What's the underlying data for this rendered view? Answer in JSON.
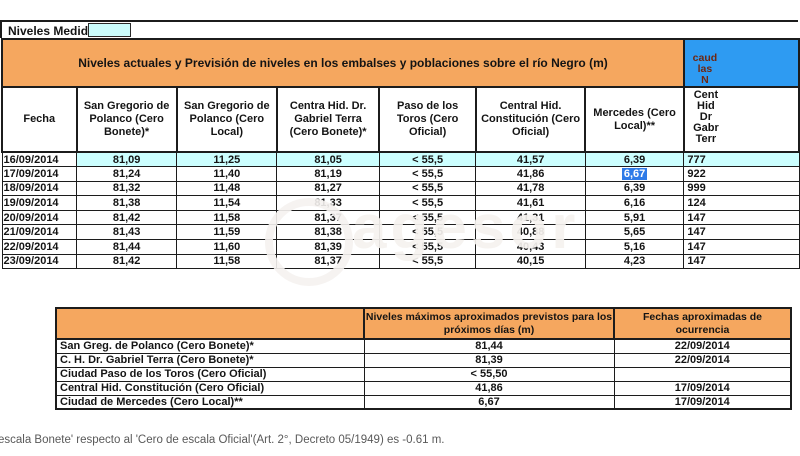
{
  "window": {
    "measured_levels_label": "Niveles Medidos"
  },
  "main_table": {
    "title": "Niveles actuales y Previsión de niveles en los embalses y poblaciones sobre el río Negro (m)",
    "blue_corner_fragments": [
      "",
      "caud",
      "las",
      "N"
    ],
    "columns": [
      "Fecha",
      "San Gregorio de Polanco (Cero Bonete)*",
      "San Gregorio de Polanco (Cero Local)",
      "Centra Hid. Dr. Gabriel Terra (Cero Bonete)*",
      "Paso de los Toros (Cero Oficial)",
      "Central Hid. Constitución (Cero Oficial)",
      "Mercedes (Cero Local)**"
    ],
    "cut_column_fragments": [
      "Cent",
      "Hid",
      "Dr",
      "Gabr",
      "Terr"
    ],
    "rows": [
      {
        "fecha": "16/09/2014",
        "values": [
          "81,09",
          "11,25",
          "81,05",
          "< 55,5",
          "41,57",
          "6,39",
          "777"
        ],
        "highlight": true
      },
      {
        "fecha": "17/09/2014",
        "values": [
          "81,24",
          "11,40",
          "81,19",
          "< 55,5",
          "41,86",
          "6,67",
          "922"
        ],
        "highlight": false
      },
      {
        "fecha": "18/09/2014",
        "values": [
          "81,32",
          "11,48",
          "81,27",
          "< 55,5",
          "41,78",
          "6,39",
          "999"
        ],
        "highlight": false
      },
      {
        "fecha": "19/09/2014",
        "values": [
          "81,38",
          "11,54",
          "81,33",
          "< 55,5",
          "41,61",
          "6,16",
          "124"
        ],
        "highlight": false
      },
      {
        "fecha": "20/09/2014",
        "values": [
          "81,42",
          "11,58",
          "81,37",
          "< 55,5",
          "41,31",
          "5,91",
          "147"
        ],
        "highlight": false
      },
      {
        "fecha": "21/09/2014",
        "values": [
          "81,43",
          "11,59",
          "81,38",
          "< 55,5",
          "40,88",
          "5,65",
          "147"
        ],
        "highlight": false
      },
      {
        "fecha": "22/09/2014",
        "values": [
          "81,44",
          "11,60",
          "81,39",
          "< 55,5",
          "40,43",
          "5,16",
          "147"
        ],
        "highlight": false
      },
      {
        "fecha": "23/09/2014",
        "values": [
          "81,42",
          "11,58",
          "81,37",
          "< 55,5",
          "40,15",
          "4,23",
          "147"
        ],
        "highlight": false
      }
    ],
    "selection": {
      "row": 1,
      "col": 5
    }
  },
  "forecast_table": {
    "value_header": "Niveles máximos aproximados previstos para los próximos días (m)",
    "date_header": "Fechas aproximadas de ocurrencia",
    "rows": [
      {
        "label": "San Greg. de Polanco (Cero Bonete)*",
        "value": "81,44",
        "date": "22/09/2014"
      },
      {
        "label": "C. H. Dr. Gabriel Terra (Cero Bonete)*",
        "value": "81,39",
        "date": "22/09/2014"
      },
      {
        "label": "Ciudad Paso de los Toros (Cero Oficial)",
        "value": "< 55,50",
        "date": ""
      },
      {
        "label": "Central Hid. Constitución (Cero Oficial)",
        "value": "41,86",
        "date": "17/09/2014"
      },
      {
        "label": "Ciudad de Mercedes (Cero Local)**",
        "value": "6,67",
        "date": "17/09/2014"
      }
    ]
  },
  "footnote": "escala Bonete' respecto al 'Cero de escala Oficial'(Art. 2°, Decreto 05/1949) es -0.61 m.",
  "watermark": {
    "text": "agesor"
  },
  "colors": {
    "orange": "#F5A75F",
    "cyan": "#CCFFFF",
    "blue_cell": "#2E9BF2",
    "blue_cell_text": "#6E2712",
    "selection": "#2E7BE8",
    "border": "#1c1c1c"
  }
}
